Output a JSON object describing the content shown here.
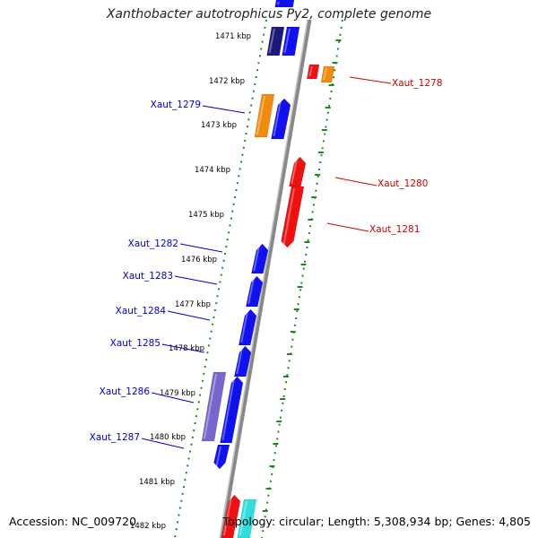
{
  "title": "Xanthobacter autotrophicus Py2, complete genome",
  "accession": "Accession: NC_009720",
  "summary": "Topology: circular; Length: 5,308,934 bp; Genes: 4,805",
  "colors": {
    "forward": "#1111ee",
    "reverse": "#ee1111",
    "navy": "#1a1a7a",
    "orange": "#f08a10",
    "purple": "#7766cc",
    "cyan": "#33dddd",
    "tick": "#1e8a1e",
    "axis": "#888888",
    "label_forward": "#0000cc",
    "label_reverse": "#cc0000"
  },
  "kbp_ticks": [
    "1471 kbp",
    "1472 kbp",
    "1473 kbp",
    "1474 kbp",
    "1475 kbp",
    "1476 kbp",
    "1477 kbp",
    "1478 kbp",
    "1479 kbp",
    "1480 kbp",
    "1481 kbp",
    "1482 kbp"
  ],
  "gene_labels": [
    {
      "text": "Xaut_1278",
      "strand": "reverse"
    },
    {
      "text": "Xaut_1279",
      "strand": "forward"
    },
    {
      "text": "Xaut_1280",
      "strand": "reverse"
    },
    {
      "text": "Xaut_1281",
      "strand": "reverse"
    },
    {
      "text": "Xaut_1282",
      "strand": "forward"
    },
    {
      "text": "Xaut_1283",
      "strand": "forward"
    },
    {
      "text": "Xaut_1284",
      "strand": "forward"
    },
    {
      "text": "Xaut_1285",
      "strand": "forward"
    },
    {
      "text": "Xaut_1286",
      "strand": "forward"
    },
    {
      "text": "Xaut_1287",
      "strand": "forward"
    }
  ]
}
